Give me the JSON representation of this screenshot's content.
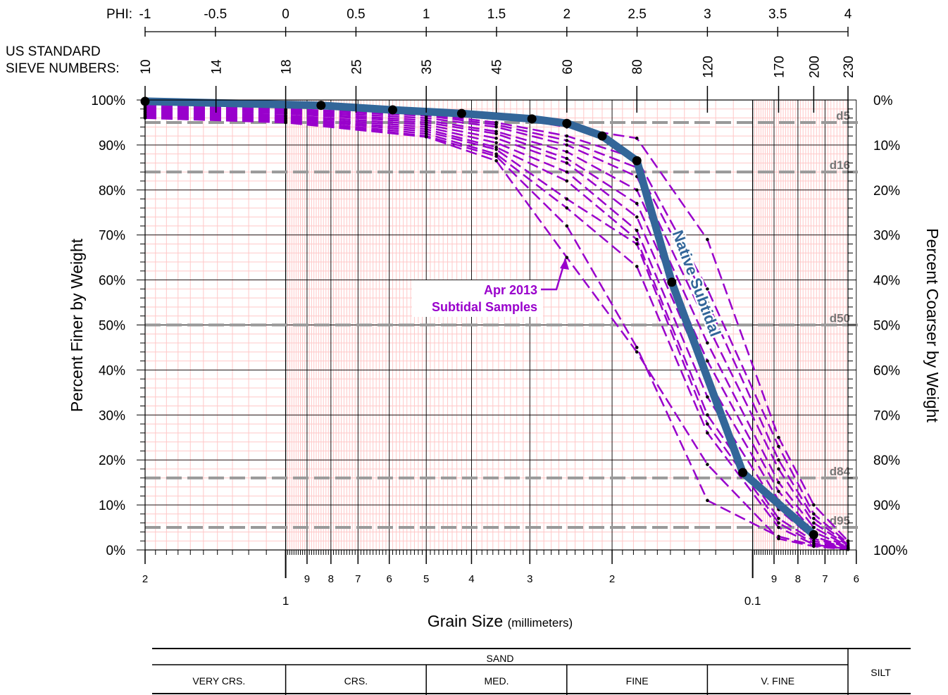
{
  "chart_data": {
    "type": "line",
    "x_scale": "log",
    "x_reversed": true,
    "xlim_mm": [
      2,
      0.0625
    ],
    "ylim": [
      0,
      100
    ],
    "xlabel": "Grain Size",
    "xlabel_unit": "(millimeters)",
    "ylabel": "Percent Finer by Weight",
    "ylabel_right": "Percent  Coarser by Weight",
    "y_ticks_left": [
      "0%",
      "10%",
      "20%",
      "30%",
      "40%",
      "50%",
      "60%",
      "70%",
      "80%",
      "90%",
      "100%"
    ],
    "y_ticks_right": [
      "100%",
      "90%",
      "80%",
      "70%",
      "60%",
      "50%",
      "40%",
      "30%",
      "20%",
      "10%",
      "0%"
    ],
    "phi_label": "PHI:",
    "phi_ticks": [
      "-1",
      "-0.5",
      "0",
      "0.5",
      "1",
      "1.5",
      "2",
      "2.5",
      "3",
      "3.5",
      "4"
    ],
    "sieve_label_line1": "US STANDARD",
    "sieve_label_line2": "SIEVE NUMBERS:",
    "sieves": [
      {
        "label": "10",
        "mm": 2.0
      },
      {
        "label": "14",
        "mm": 1.41
      },
      {
        "label": "18",
        "mm": 1.0
      },
      {
        "label": "25",
        "mm": 0.707
      },
      {
        "label": "35",
        "mm": 0.5
      },
      {
        "label": "45",
        "mm": 0.354
      },
      {
        "label": "60",
        "mm": 0.25
      },
      {
        "label": "80",
        "mm": 0.177
      },
      {
        "label": "120",
        "mm": 0.125
      },
      {
        "label": "170",
        "mm": 0.088
      },
      {
        "label": "200",
        "mm": 0.074
      },
      {
        "label": "230",
        "mm": 0.0625
      }
    ],
    "x_ticks_minor": [
      {
        "label": "2",
        "mm": 2
      },
      {
        "label": "9",
        "mm": 0.9
      },
      {
        "label": "8",
        "mm": 0.8
      },
      {
        "label": "7",
        "mm": 0.7
      },
      {
        "label": "6",
        "mm": 0.6
      },
      {
        "label": "5",
        "mm": 0.5
      },
      {
        "label": "4",
        "mm": 0.4
      },
      {
        "label": "3",
        "mm": 0.3
      },
      {
        "label": "2",
        "mm": 0.2
      },
      {
        "label": "9",
        "mm": 0.09
      },
      {
        "label": "8",
        "mm": 0.08
      },
      {
        "label": "7",
        "mm": 0.07
      },
      {
        "label": "6",
        "mm": 0.06
      }
    ],
    "x_ticks_major": [
      {
        "label": "1",
        "mm": 1
      },
      {
        "label": "0.1",
        "mm": 0.1
      }
    ],
    "reference_lines": [
      {
        "label": "d5",
        "y": 95
      },
      {
        "label": "d16",
        "y": 84
      },
      {
        "label": "d50",
        "y": 50
      },
      {
        "label": "d84",
        "y": 16
      },
      {
        "label": "d95",
        "y": 5
      }
    ],
    "native_series": {
      "name": "Native Subtidal",
      "color": "#336699",
      "points": [
        [
          2.0,
          99.7
        ],
        [
          0.84,
          98.8
        ],
        [
          0.59,
          97.8
        ],
        [
          0.42,
          97.0
        ],
        [
          0.297,
          95.8
        ],
        [
          0.25,
          94.8
        ],
        [
          0.21,
          92.0
        ],
        [
          0.177,
          86.5
        ],
        [
          0.149,
          59.5
        ],
        [
          0.105,
          17.2
        ],
        [
          0.074,
          3.4
        ]
      ]
    },
    "sample_series_name": "Apr 2013 Subtidal Samples",
    "sample_color": "#9900cc",
    "sample_series": [
      [
        [
          2.0,
          99.0
        ],
        [
          1.0,
          98.5
        ],
        [
          0.5,
          97.5
        ],
        [
          0.354,
          96.5
        ],
        [
          0.25,
          94.0
        ],
        [
          0.177,
          91.5
        ],
        [
          0.125,
          69.0
        ],
        [
          0.088,
          25.0
        ],
        [
          0.074,
          10.0
        ],
        [
          0.0625,
          2.0
        ]
      ],
      [
        [
          2.0,
          98.8
        ],
        [
          1.0,
          98.0
        ],
        [
          0.5,
          96.8
        ],
        [
          0.354,
          95.0
        ],
        [
          0.25,
          92.0
        ],
        [
          0.177,
          87.0
        ],
        [
          0.125,
          58.0
        ],
        [
          0.088,
          23.0
        ],
        [
          0.074,
          8.0
        ],
        [
          0.0625,
          1.5
        ]
      ],
      [
        [
          2.0,
          98.5
        ],
        [
          1.0,
          97.8
        ],
        [
          0.5,
          96.5
        ],
        [
          0.354,
          94.5
        ],
        [
          0.25,
          91.0
        ],
        [
          0.177,
          85.0
        ],
        [
          0.125,
          55.0
        ],
        [
          0.088,
          20.0
        ],
        [
          0.074,
          7.0
        ],
        [
          0.0625,
          1.2
        ]
      ],
      [
        [
          2.0,
          98.3
        ],
        [
          1.0,
          97.5
        ],
        [
          0.5,
          96.0
        ],
        [
          0.354,
          94.0
        ],
        [
          0.25,
          90.0
        ],
        [
          0.177,
          83.0
        ],
        [
          0.125,
          50.0
        ],
        [
          0.088,
          18.0
        ],
        [
          0.074,
          6.0
        ],
        [
          0.0625,
          1.0
        ]
      ],
      [
        [
          2.0,
          98.0
        ],
        [
          1.0,
          97.2
        ],
        [
          0.5,
          95.5
        ],
        [
          0.354,
          93.0
        ],
        [
          0.25,
          88.5
        ],
        [
          0.177,
          80.0
        ],
        [
          0.125,
          46.0
        ],
        [
          0.088,
          15.0
        ],
        [
          0.074,
          5.0
        ],
        [
          0.0625,
          0.8
        ]
      ],
      [
        [
          2.0,
          97.8
        ],
        [
          1.0,
          97.0
        ],
        [
          0.5,
          95.0
        ],
        [
          0.354,
          92.5
        ],
        [
          0.25,
          87.0
        ],
        [
          0.177,
          77.0
        ],
        [
          0.125,
          42.0
        ],
        [
          0.088,
          13.0
        ],
        [
          0.074,
          4.0
        ],
        [
          0.0625,
          0.6
        ]
      ],
      [
        [
          2.0,
          97.5
        ],
        [
          1.0,
          96.6
        ],
        [
          0.5,
          94.5
        ],
        [
          0.354,
          91.5
        ],
        [
          0.25,
          86.0
        ],
        [
          0.177,
          74.0
        ],
        [
          0.125,
          38.0
        ],
        [
          0.088,
          11.0
        ],
        [
          0.074,
          3.0
        ],
        [
          0.0625,
          0.5
        ]
      ],
      [
        [
          2.0,
          97.3
        ],
        [
          1.0,
          96.3
        ],
        [
          0.5,
          94.0
        ],
        [
          0.354,
          90.5
        ],
        [
          0.25,
          84.0
        ],
        [
          0.177,
          71.0
        ],
        [
          0.125,
          34.0
        ],
        [
          0.088,
          9.0
        ],
        [
          0.074,
          2.5
        ],
        [
          0.0625,
          0.4
        ]
      ],
      [
        [
          2.0,
          97.0
        ],
        [
          1.0,
          96.0
        ],
        [
          0.5,
          93.5
        ],
        [
          0.354,
          89.5
        ],
        [
          0.25,
          82.0
        ],
        [
          0.177,
          69.0
        ],
        [
          0.125,
          30.0
        ],
        [
          0.088,
          7.0
        ],
        [
          0.074,
          2.0
        ],
        [
          0.0625,
          0.3
        ]
      ],
      [
        [
          2.0,
          96.8
        ],
        [
          1.0,
          95.8
        ],
        [
          0.5,
          93.0
        ],
        [
          0.354,
          89.0
        ],
        [
          0.25,
          78.0
        ],
        [
          0.177,
          68.0
        ],
        [
          0.125,
          28.0
        ],
        [
          0.088,
          6.0
        ],
        [
          0.074,
          1.5
        ],
        [
          0.0625,
          0.3
        ]
      ],
      [
        [
          2.0,
          96.5
        ],
        [
          1.0,
          95.5
        ],
        [
          0.5,
          92.5
        ],
        [
          0.354,
          88.0
        ],
        [
          0.25,
          76.0
        ],
        [
          0.177,
          63.0
        ],
        [
          0.125,
          26.0
        ],
        [
          0.088,
          5.0
        ],
        [
          0.074,
          1.2
        ],
        [
          0.0625,
          0.2
        ]
      ],
      [
        [
          2.0,
          96.3
        ],
        [
          1.0,
          95.3
        ],
        [
          0.5,
          92.0
        ],
        [
          0.354,
          87.5
        ],
        [
          0.25,
          72.0
        ],
        [
          0.177,
          45.0
        ],
        [
          0.125,
          11.0
        ],
        [
          0.088,
          3.0
        ],
        [
          0.074,
          1.0
        ],
        [
          0.0625,
          0.2
        ]
      ],
      [
        [
          2.0,
          96.0
        ],
        [
          1.0,
          95.0
        ],
        [
          0.5,
          91.8
        ],
        [
          0.354,
          86.5
        ],
        [
          0.25,
          65.0
        ],
        [
          0.177,
          44.0
        ],
        [
          0.125,
          19.0
        ],
        [
          0.088,
          2.5
        ],
        [
          0.074,
          0.8
        ],
        [
          0.0625,
          0.1
        ]
      ]
    ]
  },
  "annotation": {
    "line1": "Apr 2013",
    "line2": "Subtidal Samples"
  },
  "legend_table": {
    "sand_label": "SAND",
    "silt_label": "SILT",
    "cells": [
      {
        "label": "VERY CRS.",
        "from_mm": 2.0,
        "to_mm": 1.0
      },
      {
        "label": "CRS.",
        "from_mm": 1.0,
        "to_mm": 0.5
      },
      {
        "label": "MED.",
        "from_mm": 0.5,
        "to_mm": 0.25
      },
      {
        "label": "FINE",
        "from_mm": 0.25,
        "to_mm": 0.125
      },
      {
        "label": "V. FINE",
        "from_mm": 0.125,
        "to_mm": 0.0625
      }
    ]
  }
}
